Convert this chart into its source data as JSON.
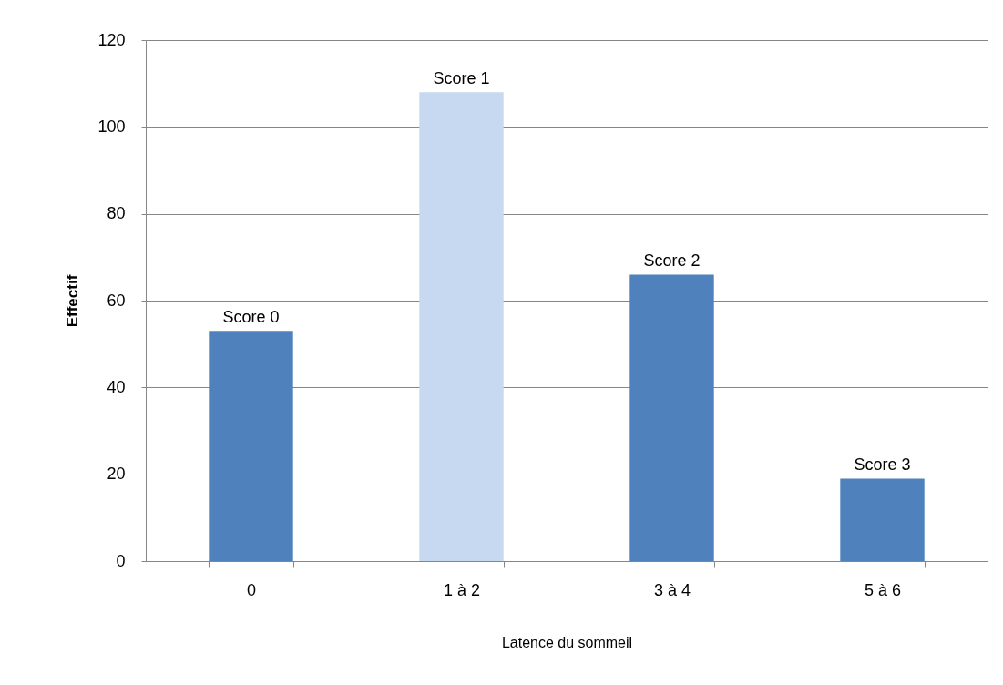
{
  "chart_data": {
    "type": "bar",
    "xlabel": "Latence du sommeil",
    "ylabel": "Effectif",
    "categories": [
      "0",
      "1 à 2",
      "3 à 4",
      "5 à 6"
    ],
    "values": [
      53,
      108,
      66,
      19
    ],
    "colors": [
      "#4f81bd",
      "#c6d9f0",
      "#4f81bd",
      "#4f81bd"
    ],
    "ylim": [
      0,
      120
    ],
    "yticks": [
      0,
      20,
      40,
      60,
      80,
      100,
      120
    ],
    "grid": "y",
    "annotations": [
      {
        "text": "Score 0",
        "x": "0",
        "y": 53
      },
      {
        "text": "Score 1",
        "x": "1 à 2",
        "y": 108
      },
      {
        "text": "Score 2",
        "x": "3 à 4",
        "y": 66
      },
      {
        "text": "Score 3",
        "x": "5 à 6",
        "y": 19
      }
    ]
  }
}
